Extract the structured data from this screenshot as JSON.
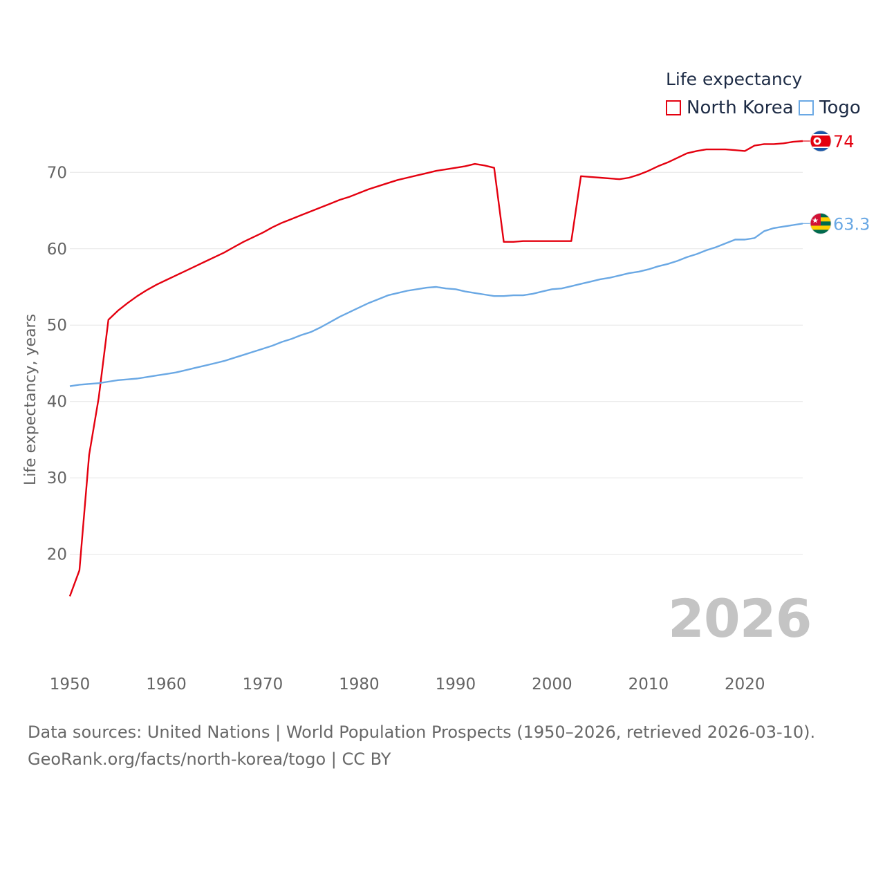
{
  "chart_data": {
    "type": "line",
    "title": "",
    "ylabel": "Life expectancy, years",
    "xlabel": "",
    "xlim": [
      1950,
      2026
    ],
    "ylim": [
      12,
      76
    ],
    "x_ticks": [
      1950,
      1960,
      1970,
      1980,
      1990,
      2000,
      2010,
      2020
    ],
    "y_ticks": [
      20,
      30,
      40,
      50,
      60,
      70
    ],
    "legend_title": "Life expectancy",
    "legend_position": "top-right",
    "current_year": "2026",
    "series": [
      {
        "name": "North Korea",
        "color": "#e4000f",
        "end_label": "74",
        "flag": "north-korea-flag",
        "points": [
          [
            1950,
            14.5
          ],
          [
            1951,
            17.9
          ],
          [
            1952,
            33.0
          ],
          [
            1953,
            40.5
          ],
          [
            1954,
            50.7
          ],
          [
            1955,
            51.9
          ],
          [
            1956,
            52.9
          ],
          [
            1957,
            53.8
          ],
          [
            1958,
            54.6
          ],
          [
            1959,
            55.3
          ],
          [
            1960,
            55.9
          ],
          [
            1961,
            56.5
          ],
          [
            1962,
            57.1
          ],
          [
            1963,
            57.7
          ],
          [
            1964,
            58.3
          ],
          [
            1965,
            58.9
          ],
          [
            1966,
            59.5
          ],
          [
            1967,
            60.2
          ],
          [
            1968,
            60.9
          ],
          [
            1969,
            61.5
          ],
          [
            1970,
            62.1
          ],
          [
            1971,
            62.8
          ],
          [
            1972,
            63.4
          ],
          [
            1973,
            63.9
          ],
          [
            1974,
            64.4
          ],
          [
            1975,
            64.9
          ],
          [
            1976,
            65.4
          ],
          [
            1977,
            65.9
          ],
          [
            1978,
            66.4
          ],
          [
            1979,
            66.8
          ],
          [
            1980,
            67.3
          ],
          [
            1981,
            67.8
          ],
          [
            1982,
            68.2
          ],
          [
            1983,
            68.6
          ],
          [
            1984,
            69.0
          ],
          [
            1985,
            69.3
          ],
          [
            1986,
            69.6
          ],
          [
            1987,
            69.9
          ],
          [
            1988,
            70.2
          ],
          [
            1989,
            70.4
          ],
          [
            1990,
            70.6
          ],
          [
            1991,
            70.8
          ],
          [
            1992,
            71.1
          ],
          [
            1993,
            70.9
          ],
          [
            1994,
            70.6
          ],
          [
            1995,
            60.9
          ],
          [
            1996,
            60.9
          ],
          [
            1997,
            61.0
          ],
          [
            1998,
            61.0
          ],
          [
            1999,
            61.0
          ],
          [
            2000,
            61.0
          ],
          [
            2001,
            61.0
          ],
          [
            2002,
            61.0
          ],
          [
            2003,
            69.5
          ],
          [
            2004,
            69.4
          ],
          [
            2005,
            69.3
          ],
          [
            2006,
            69.2
          ],
          [
            2007,
            69.1
          ],
          [
            2008,
            69.3
          ],
          [
            2009,
            69.7
          ],
          [
            2010,
            70.2
          ],
          [
            2011,
            70.8
          ],
          [
            2012,
            71.3
          ],
          [
            2013,
            71.9
          ],
          [
            2014,
            72.5
          ],
          [
            2015,
            72.8
          ],
          [
            2016,
            73.0
          ],
          [
            2017,
            73.0
          ],
          [
            2018,
            73.0
          ],
          [
            2019,
            72.9
          ],
          [
            2020,
            72.8
          ],
          [
            2021,
            73.5
          ],
          [
            2022,
            73.7
          ],
          [
            2023,
            73.7
          ],
          [
            2024,
            73.8
          ],
          [
            2025,
            74.0
          ],
          [
            2026,
            74.1
          ]
        ]
      },
      {
        "name": "Togo",
        "color": "#6aa8e4",
        "end_label": "63.3",
        "flag": "togo-flag",
        "points": [
          [
            1950,
            42.0
          ],
          [
            1951,
            42.2
          ],
          [
            1952,
            42.3
          ],
          [
            1953,
            42.4
          ],
          [
            1954,
            42.6
          ],
          [
            1955,
            42.8
          ],
          [
            1956,
            42.9
          ],
          [
            1957,
            43.0
          ],
          [
            1958,
            43.2
          ],
          [
            1959,
            43.4
          ],
          [
            1960,
            43.6
          ],
          [
            1961,
            43.8
          ],
          [
            1962,
            44.1
          ],
          [
            1963,
            44.4
          ],
          [
            1964,
            44.7
          ],
          [
            1965,
            45.0
          ],
          [
            1966,
            45.3
          ],
          [
            1967,
            45.7
          ],
          [
            1968,
            46.1
          ],
          [
            1969,
            46.5
          ],
          [
            1970,
            46.9
          ],
          [
            1971,
            47.3
          ],
          [
            1972,
            47.8
          ],
          [
            1973,
            48.2
          ],
          [
            1974,
            48.7
          ],
          [
            1975,
            49.1
          ],
          [
            1976,
            49.7
          ],
          [
            1977,
            50.4
          ],
          [
            1978,
            51.1
          ],
          [
            1979,
            51.7
          ],
          [
            1980,
            52.3
          ],
          [
            1981,
            52.9
          ],
          [
            1982,
            53.4
          ],
          [
            1983,
            53.9
          ],
          [
            1984,
            54.2
          ],
          [
            1985,
            54.5
          ],
          [
            1986,
            54.7
          ],
          [
            1987,
            54.9
          ],
          [
            1988,
            55.0
          ],
          [
            1989,
            54.8
          ],
          [
            1990,
            54.7
          ],
          [
            1991,
            54.4
          ],
          [
            1992,
            54.2
          ],
          [
            1993,
            54.0
          ],
          [
            1994,
            53.8
          ],
          [
            1995,
            53.8
          ],
          [
            1996,
            53.9
          ],
          [
            1997,
            53.9
          ],
          [
            1998,
            54.1
          ],
          [
            1999,
            54.4
          ],
          [
            2000,
            54.7
          ],
          [
            2001,
            54.8
          ],
          [
            2002,
            55.1
          ],
          [
            2003,
            55.4
          ],
          [
            2004,
            55.7
          ],
          [
            2005,
            56.0
          ],
          [
            2006,
            56.2
          ],
          [
            2007,
            56.5
          ],
          [
            2008,
            56.8
          ],
          [
            2009,
            57.0
          ],
          [
            2010,
            57.3
          ],
          [
            2011,
            57.7
          ],
          [
            2012,
            58.0
          ],
          [
            2013,
            58.4
          ],
          [
            2014,
            58.9
          ],
          [
            2015,
            59.3
          ],
          [
            2016,
            59.8
          ],
          [
            2017,
            60.2
          ],
          [
            2018,
            60.7
          ],
          [
            2019,
            61.2
          ],
          [
            2020,
            61.2
          ],
          [
            2021,
            61.4
          ],
          [
            2022,
            62.3
          ],
          [
            2023,
            62.7
          ],
          [
            2024,
            62.9
          ],
          [
            2025,
            63.1
          ],
          [
            2026,
            63.3
          ]
        ]
      }
    ]
  },
  "source": {
    "line1": "Data sources: United Nations | World Population Prospects (1950–2026, retrieved 2026-03-10).",
    "line2": "GeoRank.org/facts/north-korea/togo | CC BY"
  }
}
